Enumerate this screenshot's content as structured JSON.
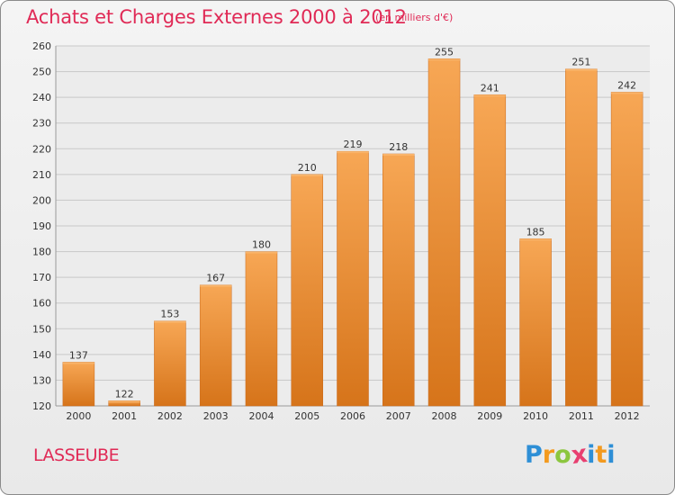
{
  "header": {
    "title": "Achats et Charges Externes 2000 à 2012",
    "subtitle": "(en milliers d'€)"
  },
  "footer": {
    "place": "LASSEUBE",
    "logo_letters": [
      "P",
      "r",
      "o",
      "x",
      "i",
      "t",
      "i"
    ],
    "logo_colors": [
      "#2e8fd6",
      "#f39a1f",
      "#8cc63f",
      "#e83f70",
      "#2e8fd6",
      "#f39a1f",
      "#2e8fd6"
    ]
  },
  "colors": {
    "bar_top": "#f7a755",
    "bar_bottom": "#d6741a",
    "grid": "#c8c8c8",
    "axis_text": "#333333",
    "accent": "#e02a56"
  },
  "chart_data": {
    "type": "bar",
    "categories": [
      "2000",
      "2001",
      "2002",
      "2003",
      "2004",
      "2005",
      "2006",
      "2007",
      "2008",
      "2009",
      "2010",
      "2011",
      "2012"
    ],
    "values": [
      137,
      122,
      153,
      167,
      180,
      210,
      219,
      218,
      255,
      241,
      185,
      251,
      242
    ],
    "ylim": [
      120,
      260
    ],
    "yticks": [
      120,
      130,
      140,
      150,
      160,
      170,
      180,
      190,
      200,
      210,
      220,
      230,
      240,
      250,
      260
    ],
    "grid": true,
    "data_labels": true
  }
}
